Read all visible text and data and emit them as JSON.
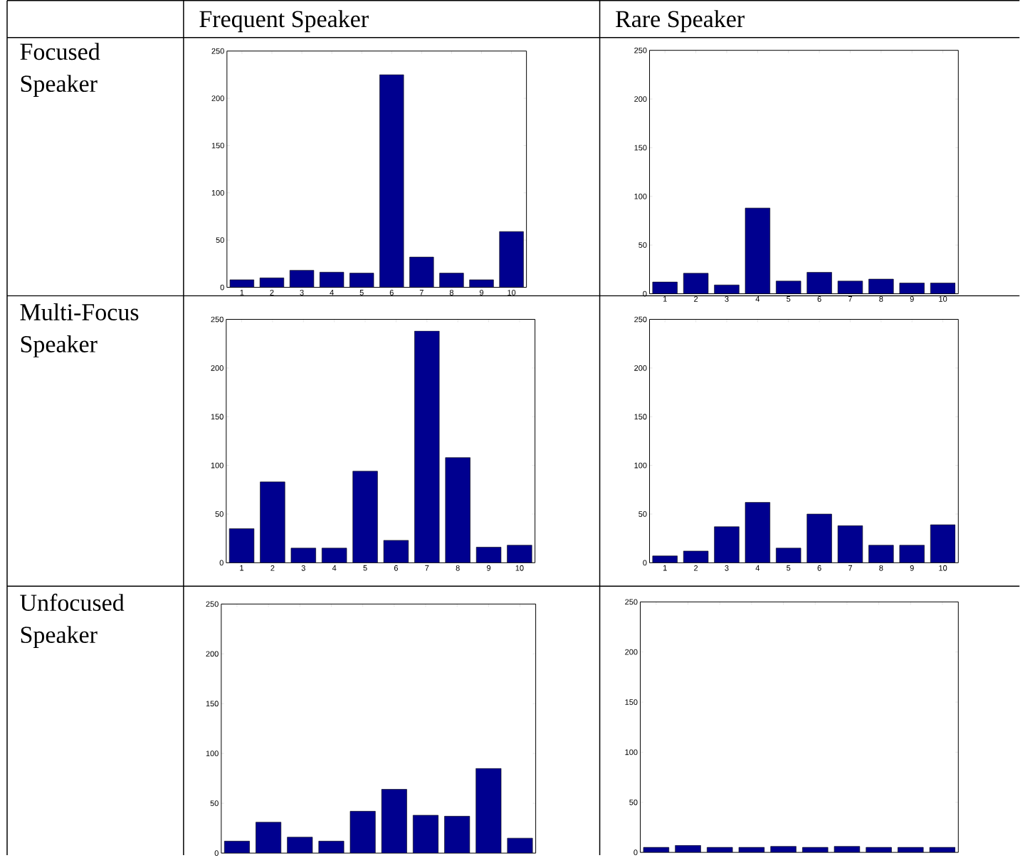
{
  "chart_data": [
    {
      "type": "bar",
      "title": "Frequent Speaker",
      "ylabel": "Focused Speaker",
      "categories": [
        "1",
        "2",
        "3",
        "4",
        "5",
        "6",
        "7",
        "8",
        "9",
        "10"
      ],
      "values": [
        8,
        10,
        18,
        16,
        15,
        225,
        32,
        15,
        8,
        59
      ],
      "color": "#00008f",
      "ylim": [
        0,
        250
      ],
      "yticks": [
        0,
        50,
        100,
        150,
        200,
        250
      ]
    },
    {
      "type": "bar",
      "title": "Rare Speaker",
      "categories": [
        "1",
        "2",
        "3",
        "4",
        "5",
        "6",
        "7",
        "8",
        "9",
        "10"
      ],
      "values": [
        12,
        21,
        9,
        88,
        13,
        22,
        13,
        15,
        11,
        11
      ],
      "color": "#00008f",
      "ylim": [
        0,
        250
      ],
      "yticks": [
        0,
        50,
        100,
        150,
        200,
        250
      ]
    },
    {
      "type": "bar",
      "ylabel": "Multi-Focus Speaker",
      "categories": [
        "1",
        "2",
        "3",
        "4",
        "5",
        "6",
        "7",
        "8",
        "9",
        "10"
      ],
      "values": [
        35,
        83,
        15,
        15,
        94,
        23,
        238,
        108,
        16,
        18
      ],
      "color": "#00008f",
      "ylim": [
        0,
        250
      ],
      "yticks": [
        0,
        50,
        100,
        150,
        200,
        250
      ]
    },
    {
      "type": "bar",
      "categories": [
        "1",
        "2",
        "3",
        "4",
        "5",
        "6",
        "7",
        "8",
        "9",
        "10"
      ],
      "values": [
        7,
        12,
        37,
        62,
        15,
        50,
        38,
        18,
        18,
        39
      ],
      "color": "#00008f",
      "ylim": [
        0,
        250
      ],
      "yticks": [
        0,
        50,
        100,
        150,
        200,
        250
      ]
    },
    {
      "type": "bar",
      "ylabel": "Unfocused Speaker",
      "categories": [
        null,
        null,
        null,
        null,
        null,
        null,
        null,
        null,
        null,
        null
      ],
      "values": [
        12,
        31,
        16,
        12,
        42,
        64,
        38,
        37,
        85,
        15
      ],
      "color": "#00008f",
      "ylim": [
        0,
        250
      ],
      "yticks": [
        0,
        50,
        100,
        150,
        200,
        250
      ],
      "tick_labels": "y"
    },
    {
      "type": "bar",
      "categories": [
        null,
        null,
        null,
        null,
        null,
        null,
        null,
        null,
        null,
        null
      ],
      "values": [
        5,
        7,
        5,
        5,
        6,
        5,
        6,
        5,
        5,
        5
      ],
      "color": "#00008f",
      "ylim": [
        0,
        250
      ],
      "yticks": [
        0,
        50,
        100,
        150,
        200,
        250
      ],
      "tick_labels": "y"
    }
  ]
}
